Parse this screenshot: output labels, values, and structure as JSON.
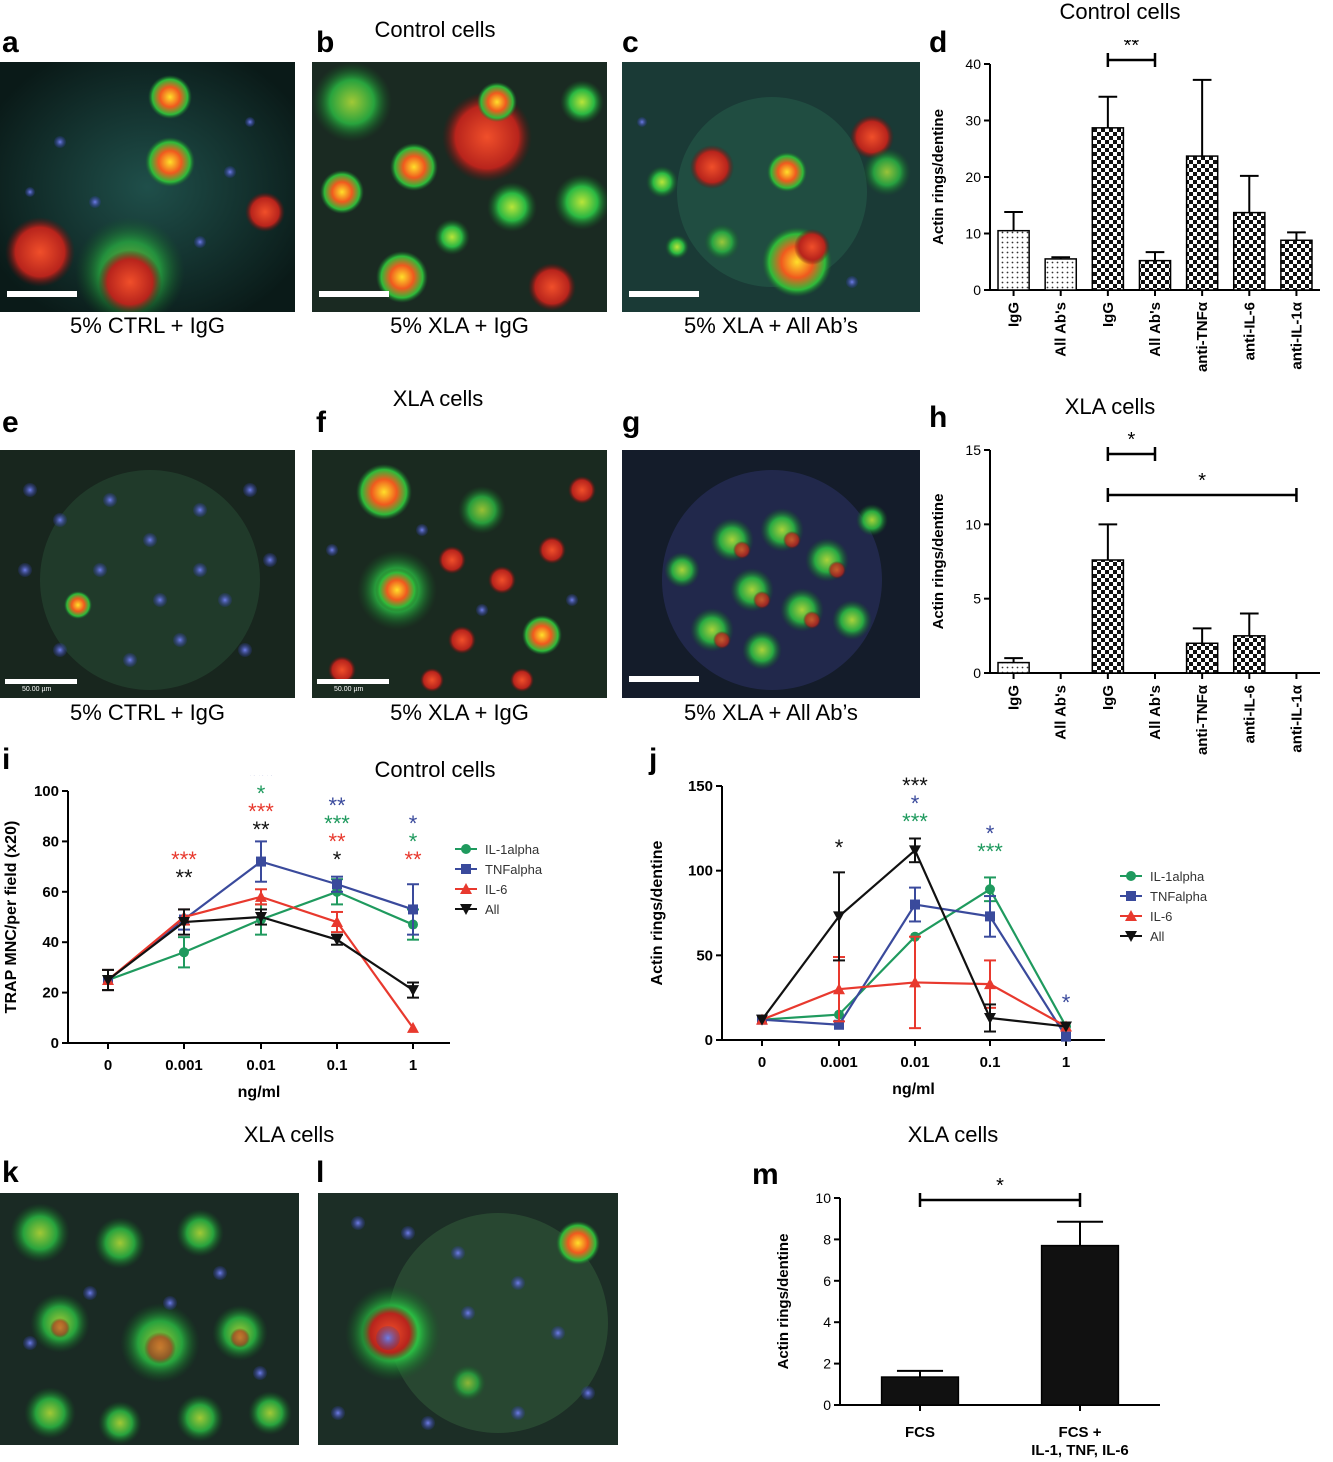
{
  "headings": {
    "control_top": "Control cells",
    "control_d": "Control cells",
    "xla_mid": "XLA cells",
    "xla_h": "XLA cells",
    "control_i": "Control cells",
    "xla_k": "XLA cells",
    "xla_m": "XLA cells"
  },
  "panels": {
    "a": "a",
    "b": "b",
    "c": "c",
    "d": "d",
    "e": "e",
    "f": "f",
    "g": "g",
    "h": "h",
    "i": "i",
    "j": "j",
    "k": "k",
    "l": "l",
    "m": "m"
  },
  "captions": {
    "a": "5% CTRL + IgG",
    "b": "5% XLA + IgG",
    "c": "5% XLA + All Ab’s",
    "e": "5% CTRL + IgG",
    "f": "5% XLA + IgG",
    "g": "5% XLA + All Ab’s"
  },
  "scalebar_text": {
    "e": "50.00 µm",
    "f": "50.00 µm"
  },
  "colors": {
    "IL-1alpha": "#1f9a5e",
    "TNFalpha": "#3a4a9c",
    "IL-6": "#e8392e",
    "All": "#111111"
  },
  "chart_data": [
    {
      "id": "d",
      "type": "bar",
      "title": "Control cells",
      "ylabel": "Actin rings/dentine",
      "ylim": [
        0,
        40
      ],
      "yticks": [
        "0",
        "10",
        "20",
        "30",
        "40"
      ],
      "categories": [
        "IgG",
        "All Ab's",
        "IgG",
        "All Ab's",
        "anti-TNFα",
        "anti-IL-6",
        "anti-IL-1α"
      ],
      "values": [
        10.5,
        5.5,
        28.7,
        5.2,
        23.7,
        13.7,
        8.8
      ],
      "errors": [
        3.3,
        0.3,
        5.5,
        1.5,
        13.5,
        6.5,
        1.4
      ],
      "fill": [
        "dots",
        "dots",
        "checker",
        "checker",
        "checker",
        "checker",
        "checker"
      ],
      "significance": [
        {
          "from": 2,
          "to": 3,
          "label": "**"
        }
      ]
    },
    {
      "id": "h",
      "type": "bar",
      "title": "XLA cells",
      "ylabel": "Actin rings/dentine",
      "ylim": [
        0,
        15
      ],
      "yticks": [
        "0",
        "5",
        "10",
        "15"
      ],
      "categories": [
        "IgG",
        "All Ab's",
        "IgG",
        "All Ab's",
        "anti-TNFα",
        "anti-IL-6",
        "anti-IL-1α"
      ],
      "values": [
        0.7,
        0,
        7.6,
        0,
        2.0,
        2.5,
        0
      ],
      "errors": [
        0.3,
        0,
        2.4,
        0,
        1.0,
        1.5,
        0
      ],
      "fill": [
        "dots",
        "dots",
        "checker",
        "checker",
        "checker",
        "checker",
        "checker"
      ],
      "significance": [
        {
          "from": 2,
          "to": 3,
          "label": "*"
        },
        {
          "from": 2,
          "to": 6,
          "label": "*"
        }
      ]
    },
    {
      "id": "i",
      "type": "line",
      "title": "Control cells",
      "xlabel": "ng/ml",
      "ylabel": "TRAP MNC/per field (x20)",
      "ylim": [
        0,
        100
      ],
      "yticks": [
        "0",
        "20",
        "40",
        "60",
        "80",
        "100"
      ],
      "categories": [
        "0",
        "0.001",
        "0.01",
        "0.1",
        "1"
      ],
      "series": [
        {
          "name": "IL-1alpha",
          "marker": "circle",
          "values": [
            25,
            36,
            49,
            60,
            47
          ],
          "errors": [
            4,
            6,
            6,
            5,
            6
          ]
        },
        {
          "name": "TNFalpha",
          "marker": "square",
          "values": [
            25,
            49,
            72,
            63,
            53
          ],
          "errors": [
            4,
            4,
            8,
            3,
            10
          ]
        },
        {
          "name": "IL-6",
          "marker": "triangle",
          "values": [
            25,
            50,
            58,
            48,
            6
          ],
          "errors": [
            4,
            3,
            3,
            4,
            0
          ]
        },
        {
          "name": "All",
          "marker": "triangle-down",
          "values": [
            25,
            48,
            50,
            41,
            21
          ],
          "errors": [
            4,
            5,
            3,
            2,
            3
          ]
        }
      ],
      "annotations": [
        {
          "x": 1,
          "lines": [
            {
              "text": "***",
              "series": "IL-6"
            },
            {
              "text": "**",
              "series": "All"
            }
          ]
        },
        {
          "x": 2,
          "lines": [
            {
              "text": "***",
              "series": "TNFalpha"
            },
            {
              "text": "*",
              "series": "IL-1alpha"
            },
            {
              "text": "***",
              "series": "IL-6"
            },
            {
              "text": "**",
              "series": "All"
            }
          ]
        },
        {
          "x": 3,
          "lines": [
            {
              "text": "**",
              "series": "TNFalpha"
            },
            {
              "text": "***",
              "series": "IL-1alpha"
            },
            {
              "text": "**",
              "series": "IL-6"
            },
            {
              "text": "*",
              "series": "All"
            }
          ]
        },
        {
          "x": 4,
          "lines": [
            {
              "text": "*",
              "series": "TNFalpha"
            },
            {
              "text": "*",
              "series": "IL-1alpha"
            },
            {
              "text": "**",
              "series": "IL-6"
            }
          ]
        }
      ]
    },
    {
      "id": "j",
      "type": "line",
      "xlabel": "ng/ml",
      "ylabel": "Actin rings/dentine",
      "ylim": [
        0,
        150
      ],
      "yticks": [
        "0",
        "50",
        "100",
        "150"
      ],
      "categories": [
        "0",
        "0.001",
        "0.01",
        "0.1",
        "1"
      ],
      "series": [
        {
          "name": "IL-1alpha",
          "marker": "circle",
          "values": [
            12,
            15,
            61,
            89,
            8
          ],
          "errors": [
            0,
            0,
            0,
            7,
            0
          ]
        },
        {
          "name": "TNFalpha",
          "marker": "square",
          "values": [
            12,
            9,
            80,
            73,
            2
          ],
          "errors": [
            0,
            0,
            10,
            12,
            0
          ]
        },
        {
          "name": "IL-6",
          "marker": "triangle",
          "values": [
            12,
            30,
            34,
            33,
            8
          ],
          "errors": [
            0,
            19,
            27,
            14,
            0
          ]
        },
        {
          "name": "All",
          "marker": "triangle-down",
          "values": [
            12,
            73,
            112,
            13,
            8
          ],
          "errors": [
            0,
            26,
            7,
            8,
            0
          ]
        }
      ],
      "annotations": [
        {
          "x": 1,
          "lines": [
            {
              "text": "*",
              "series": "All"
            }
          ]
        },
        {
          "x": 2,
          "lines": [
            {
              "text": "***",
              "series": "All"
            },
            {
              "text": "*",
              "series": "TNFalpha"
            },
            {
              "text": "***",
              "series": "IL-1alpha"
            }
          ]
        },
        {
          "x": 3,
          "lines": [
            {
              "text": "*",
              "series": "TNFalpha"
            },
            {
              "text": "***",
              "series": "IL-1alpha"
            }
          ]
        },
        {
          "x": 4,
          "lines": [
            {
              "text": "*",
              "series": "TNFalpha"
            }
          ]
        }
      ]
    },
    {
      "id": "m",
      "type": "bar",
      "title": "XLA cells",
      "ylabel": "Actin rings/dentine",
      "ylim": [
        0,
        10
      ],
      "yticks": [
        "0",
        "2",
        "4",
        "6",
        "8",
        "10"
      ],
      "categories": [
        "FCS",
        "FCS +\nIL-1, TNF, IL-6"
      ],
      "values": [
        1.35,
        7.7
      ],
      "errors": [
        0.3,
        1.15
      ],
      "fill": [
        "solid",
        "solid"
      ],
      "significance": [
        {
          "from": 0,
          "to": 1,
          "label": "*"
        }
      ]
    }
  ]
}
